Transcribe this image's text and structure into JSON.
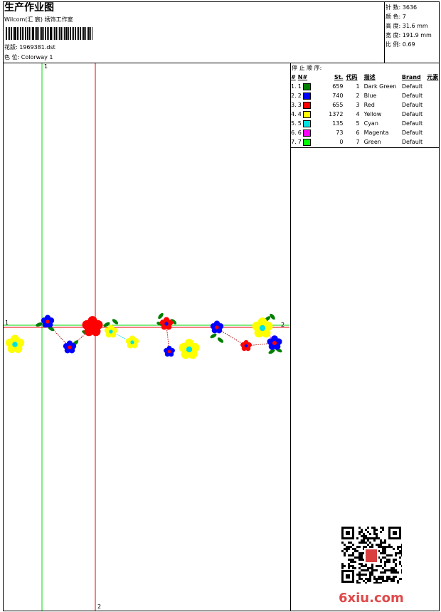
{
  "header": {
    "title": "生产作业图",
    "studio": "Wilcom(汇 宸) 绣饰工作室",
    "design_line": "花版: 1969381.dst",
    "colorway_line": "色 位: Colorway 1"
  },
  "stats": {
    "stitches": "针 数: 3636",
    "colors": "颜 色: 7",
    "height": "高 度: 31.6 mm",
    "width": "宽 度: 191.9 mm",
    "scale": "比 例: 0.69"
  },
  "stop_sequence": {
    "title": "停 止 顺 序:",
    "headers": [
      "#",
      "N#",
      "St.",
      "代码",
      "描述",
      "Brand",
      "元素"
    ],
    "rows": [
      {
        "num": "1.",
        "n": "1",
        "st": "659",
        "code": "1",
        "desc": "Dark Green",
        "brand": "Default",
        "color": "#008000"
      },
      {
        "num": "2.",
        "n": "2",
        "st": "740",
        "code": "2",
        "desc": "Blue",
        "brand": "Default",
        "color": "#0000ff"
      },
      {
        "num": "3.",
        "n": "3",
        "st": "655",
        "code": "3",
        "desc": "Red",
        "brand": "Default",
        "color": "#ff0000"
      },
      {
        "num": "4.",
        "n": "4",
        "st": "1372",
        "code": "4",
        "desc": "Yellow",
        "brand": "Default",
        "color": "#ffff00"
      },
      {
        "num": "5.",
        "n": "5",
        "st": "135",
        "code": "5",
        "desc": "Cyan",
        "brand": "Default",
        "color": "#00e0e0"
      },
      {
        "num": "6.",
        "n": "6",
        "st": "73",
        "code": "6",
        "desc": "Magenta",
        "brand": "Default",
        "color": "#ff00ff"
      },
      {
        "num": "7.",
        "n": "7",
        "st": "0",
        "code": "7",
        "desc": "Green",
        "brand": "Default",
        "color": "#00ff00"
      }
    ]
  },
  "markers": {
    "v1": "1",
    "v2": "2",
    "h1": "1",
    "h2": "2"
  },
  "watermark": "6xiu.com"
}
